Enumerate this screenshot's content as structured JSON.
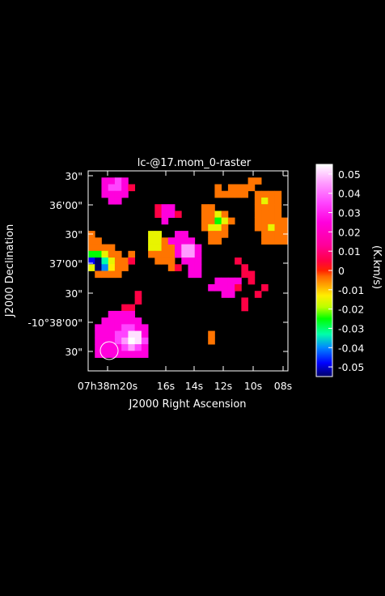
{
  "chart_data": {
    "type": "heatmap",
    "title": "lc-@17.mom_0-raster",
    "xlabel": "J2000 Right Ascension",
    "ylabel": "J2000 Declination",
    "x_ticks": [
      "07h38m20s",
      "16s",
      "14s",
      "12s",
      "10s",
      "08s"
    ],
    "y_ticks": [
      "30\"",
      "36'00\"",
      "30\"",
      "37'00\"",
      "30\"",
      "-10°38'00\"",
      "30\""
    ],
    "colorbar": {
      "label": "(K.km/s)",
      "range": [
        -0.055,
        0.055
      ],
      "ticks": [
        "0.05",
        "0.04",
        "0.03",
        "0.02",
        "0.01",
        "0",
        "-0.01",
        "-0.02",
        "-0.03",
        "-0.04",
        "-0.05"
      ],
      "tick_values": [
        0.05,
        0.04,
        0.03,
        0.02,
        0.01,
        0,
        -0.01,
        -0.02,
        -0.03,
        -0.04,
        -0.05
      ],
      "colors": [
        [
          -0.055,
          "#000066"
        ],
        [
          -0.048,
          "#0000ff"
        ],
        [
          -0.04,
          "#0088ff"
        ],
        [
          -0.033,
          "#00ffaa"
        ],
        [
          -0.025,
          "#00ff00"
        ],
        [
          -0.019,
          "#bbff00"
        ],
        [
          -0.013,
          "#ffee00"
        ],
        [
          -0.008,
          "#ffaa00"
        ],
        [
          -0.003,
          "#ff6600"
        ],
        [
          0.0,
          "#ff2200"
        ],
        [
          0.005,
          "#ff0044"
        ],
        [
          0.013,
          "#ff0099"
        ],
        [
          0.025,
          "#ff00dd"
        ],
        [
          0.035,
          "#ff44ff"
        ],
        [
          0.045,
          "#ff99ff"
        ],
        [
          0.055,
          "#ffffff"
        ]
      ]
    },
    "cols": 30,
    "rows": 30,
    "cells": [
      [
        2,
        1,
        0.025
      ],
      [
        3,
        1,
        0.025
      ],
      [
        4,
        1,
        0.035
      ],
      [
        5,
        1,
        0.025
      ],
      [
        2,
        2,
        0.025
      ],
      [
        3,
        2,
        0.035
      ],
      [
        4,
        2,
        0.035
      ],
      [
        5,
        2,
        0.025
      ],
      [
        6,
        2,
        0.005
      ],
      [
        2,
        3,
        0.025
      ],
      [
        3,
        3,
        0.025
      ],
      [
        4,
        3,
        0.025
      ],
      [
        5,
        3,
        0.025
      ],
      [
        3,
        4,
        0.025
      ],
      [
        4,
        4,
        0.025
      ],
      [
        10,
        5,
        0.005
      ],
      [
        11,
        5,
        0.025
      ],
      [
        12,
        5,
        0.025
      ],
      [
        10,
        6,
        0.005
      ],
      [
        11,
        6,
        0.025
      ],
      [
        12,
        6,
        0.025
      ],
      [
        13,
        6,
        0.005
      ],
      [
        11,
        7,
        0.025
      ],
      [
        19,
        3,
        -0.004
      ],
      [
        20,
        3,
        -0.004
      ],
      [
        21,
        3,
        -0.004
      ],
      [
        22,
        3,
        -0.004
      ],
      [
        23,
        3,
        -0.004
      ],
      [
        19,
        2,
        -0.004
      ],
      [
        21,
        2,
        -0.004
      ],
      [
        22,
        2,
        -0.004
      ],
      [
        24,
        1,
        -0.004
      ],
      [
        25,
        1,
        -0.004
      ],
      [
        23,
        2,
        -0.004
      ],
      [
        24,
        2,
        -0.004
      ],
      [
        17,
        5,
        -0.004
      ],
      [
        18,
        5,
        -0.004
      ],
      [
        17,
        6,
        -0.004
      ],
      [
        18,
        6,
        -0.004
      ],
      [
        19,
        6,
        -0.015
      ],
      [
        20,
        6,
        -0.004
      ],
      [
        17,
        7,
        -0.004
      ],
      [
        18,
        7,
        -0.004
      ],
      [
        19,
        7,
        -0.025
      ],
      [
        20,
        7,
        -0.015
      ],
      [
        21,
        7,
        -0.004
      ],
      [
        17,
        8,
        -0.004
      ],
      [
        18,
        8,
        -0.015
      ],
      [
        19,
        8,
        -0.015
      ],
      [
        20,
        8,
        -0.004
      ],
      [
        18,
        9,
        -0.004
      ],
      [
        19,
        9,
        -0.004
      ],
      [
        20,
        9,
        -0.004
      ],
      [
        18,
        10,
        -0.004
      ],
      [
        19,
        10,
        -0.004
      ],
      [
        25,
        3,
        -0.004
      ],
      [
        26,
        3,
        -0.004
      ],
      [
        27,
        3,
        -0.004
      ],
      [
        28,
        3,
        -0.004
      ],
      [
        25,
        4,
        -0.004
      ],
      [
        26,
        4,
        -0.015
      ],
      [
        27,
        4,
        -0.004
      ],
      [
        28,
        4,
        -0.004
      ],
      [
        25,
        5,
        -0.004
      ],
      [
        26,
        5,
        -0.004
      ],
      [
        27,
        5,
        -0.004
      ],
      [
        28,
        5,
        -0.004
      ],
      [
        25,
        6,
        -0.004
      ],
      [
        26,
        6,
        -0.004
      ],
      [
        27,
        6,
        -0.004
      ],
      [
        28,
        6,
        -0.004
      ],
      [
        25,
        7,
        -0.004
      ],
      [
        26,
        7,
        -0.004
      ],
      [
        27,
        7,
        -0.004
      ],
      [
        28,
        7,
        -0.004
      ],
      [
        29,
        7,
        -0.004
      ],
      [
        25,
        8,
        -0.004
      ],
      [
        26,
        8,
        -0.004
      ],
      [
        27,
        8,
        -0.015
      ],
      [
        28,
        8,
        -0.004
      ],
      [
        29,
        8,
        -0.004
      ],
      [
        26,
        9,
        -0.004
      ],
      [
        27,
        9,
        -0.004
      ],
      [
        28,
        9,
        -0.004
      ],
      [
        29,
        9,
        -0.004
      ],
      [
        26,
        10,
        -0.004
      ],
      [
        27,
        10,
        -0.004
      ],
      [
        28,
        10,
        -0.004
      ],
      [
        29,
        10,
        -0.004
      ],
      [
        0,
        9,
        -0.004
      ],
      [
        0,
        10,
        -0.004
      ],
      [
        1,
        10,
        -0.004
      ],
      [
        0,
        11,
        -0.004
      ],
      [
        1,
        11,
        -0.004
      ],
      [
        2,
        11,
        -0.004
      ],
      [
        3,
        11,
        -0.004
      ],
      [
        0,
        12,
        -0.025
      ],
      [
        1,
        12,
        -0.025
      ],
      [
        2,
        12,
        -0.015
      ],
      [
        3,
        12,
        -0.004
      ],
      [
        4,
        12,
        -0.004
      ],
      [
        0,
        13,
        -0.048
      ],
      [
        1,
        13,
        -0.055
      ],
      [
        2,
        13,
        -0.033
      ],
      [
        3,
        13,
        -0.015
      ],
      [
        4,
        13,
        -0.004
      ],
      [
        0,
        14,
        -0.015
      ],
      [
        1,
        14,
        -0.055
      ],
      [
        2,
        14,
        -0.04
      ],
      [
        3,
        14,
        -0.013
      ],
      [
        4,
        14,
        -0.004
      ],
      [
        5,
        14,
        -0.004
      ],
      [
        1,
        15,
        -0.004
      ],
      [
        2,
        15,
        -0.004
      ],
      [
        3,
        15,
        -0.004
      ],
      [
        4,
        15,
        -0.004
      ],
      [
        5,
        13,
        -0.004
      ],
      [
        6,
        12,
        -0.004
      ],
      [
        6,
        13,
        0.005
      ],
      [
        9,
        9,
        -0.015
      ],
      [
        10,
        9,
        -0.015
      ],
      [
        9,
        10,
        -0.015
      ],
      [
        10,
        10,
        -0.015
      ],
      [
        11,
        10,
        -0.004
      ],
      [
        9,
        11,
        -0.015
      ],
      [
        10,
        11,
        -0.015
      ],
      [
        11,
        11,
        -0.004
      ],
      [
        9,
        12,
        -0.004
      ],
      [
        10,
        12,
        -0.004
      ],
      [
        11,
        12,
        -0.004
      ],
      [
        12,
        12,
        -0.004
      ],
      [
        10,
        13,
        -0.004
      ],
      [
        11,
        13,
        -0.004
      ],
      [
        12,
        10,
        -0.004
      ],
      [
        12,
        11,
        -0.004
      ],
      [
        12,
        13,
        -0.004
      ],
      [
        12,
        14,
        -0.004
      ],
      [
        13,
        14,
        0.005
      ],
      [
        13,
        9,
        0.025
      ],
      [
        14,
        9,
        0.025
      ],
      [
        12,
        10,
        0.025
      ],
      [
        13,
        10,
        0.025
      ],
      [
        14,
        10,
        0.025
      ],
      [
        15,
        10,
        0.025
      ],
      [
        13,
        11,
        0.025
      ],
      [
        14,
        11,
        0.045
      ],
      [
        15,
        11,
        0.045
      ],
      [
        16,
        11,
        0.025
      ],
      [
        13,
        12,
        0.025
      ],
      [
        14,
        12,
        0.045
      ],
      [
        15,
        12,
        0.045
      ],
      [
        16,
        12,
        0.025
      ],
      [
        14,
        13,
        0.025
      ],
      [
        15,
        13,
        0.025
      ],
      [
        16,
        13,
        0.025
      ],
      [
        15,
        14,
        0.025
      ],
      [
        16,
        14,
        0.025
      ],
      [
        15,
        15,
        0.025
      ],
      [
        16,
        15,
        0.025
      ],
      [
        23,
        14,
        0.005
      ],
      [
        23,
        15,
        0.005
      ],
      [
        24,
        15,
        0.005
      ],
      [
        22,
        13,
        0.005
      ],
      [
        19,
        16,
        0.025
      ],
      [
        20,
        16,
        0.025
      ],
      [
        21,
        16,
        0.025
      ],
      [
        22,
        16,
        0.025
      ],
      [
        18,
        17,
        0.025
      ],
      [
        19,
        17,
        0.025
      ],
      [
        20,
        17,
        0.025
      ],
      [
        21,
        17,
        0.025
      ],
      [
        22,
        17,
        0.005
      ],
      [
        20,
        18,
        0.025
      ],
      [
        21,
        18,
        0.025
      ],
      [
        24,
        16,
        0.005
      ],
      [
        26,
        17,
        0.005
      ],
      [
        25,
        18,
        0.005
      ],
      [
        23,
        19,
        0.005
      ],
      [
        23,
        20,
        0.005
      ],
      [
        7,
        18,
        0.005
      ],
      [
        7,
        19,
        0.005
      ],
      [
        5,
        20,
        0.005
      ],
      [
        6,
        20,
        0.005
      ],
      [
        3,
        21,
        0.025
      ],
      [
        4,
        21,
        0.025
      ],
      [
        5,
        21,
        0.025
      ],
      [
        6,
        21,
        0.025
      ],
      [
        2,
        22,
        0.025
      ],
      [
        3,
        22,
        0.025
      ],
      [
        4,
        22,
        0.025
      ],
      [
        5,
        22,
        0.025
      ],
      [
        6,
        22,
        0.025
      ],
      [
        7,
        22,
        0.025
      ],
      [
        1,
        23,
        0.025
      ],
      [
        2,
        23,
        0.025
      ],
      [
        3,
        23,
        0.025
      ],
      [
        4,
        23,
        0.025
      ],
      [
        5,
        23,
        0.035
      ],
      [
        6,
        23,
        0.035
      ],
      [
        7,
        23,
        0.025
      ],
      [
        8,
        23,
        0.025
      ],
      [
        1,
        24,
        0.025
      ],
      [
        2,
        24,
        0.025
      ],
      [
        3,
        24,
        0.025
      ],
      [
        4,
        24,
        0.035
      ],
      [
        5,
        24,
        0.035
      ],
      [
        6,
        24,
        0.052
      ],
      [
        7,
        24,
        0.052
      ],
      [
        8,
        24,
        0.025
      ],
      [
        1,
        25,
        0.025
      ],
      [
        2,
        25,
        0.025
      ],
      [
        3,
        25,
        0.025
      ],
      [
        4,
        25,
        0.035
      ],
      [
        5,
        25,
        0.045
      ],
      [
        6,
        25,
        0.055
      ],
      [
        7,
        25,
        0.052
      ],
      [
        8,
        25,
        0.035
      ],
      [
        1,
        26,
        0.025
      ],
      [
        2,
        26,
        0.025
      ],
      [
        3,
        26,
        0.025
      ],
      [
        4,
        26,
        0.025
      ],
      [
        5,
        26,
        0.035
      ],
      [
        6,
        26,
        0.045
      ],
      [
        7,
        26,
        0.035
      ],
      [
        8,
        26,
        0.025
      ],
      [
        1,
        27,
        0.025
      ],
      [
        2,
        27,
        0.025
      ],
      [
        3,
        27,
        0.025
      ],
      [
        4,
        27,
        0.025
      ],
      [
        5,
        27,
        0.025
      ],
      [
        6,
        27,
        0.025
      ],
      [
        7,
        27,
        0.025
      ],
      [
        8,
        27,
        0.025
      ],
      [
        18,
        24,
        -0.004
      ],
      [
        18,
        25,
        -0.004
      ]
    ]
  }
}
